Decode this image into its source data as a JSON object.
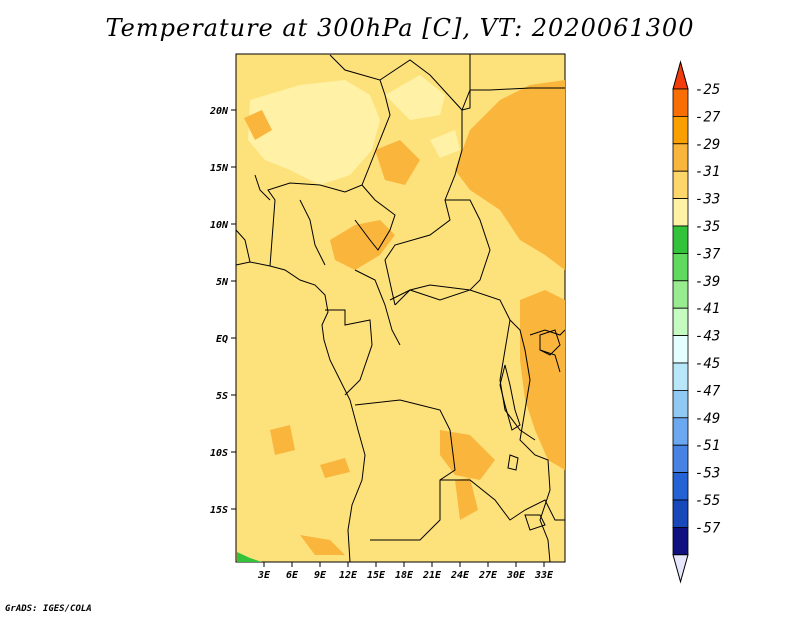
{
  "title": "Temperature at 300hPa [C], VT: 2020061300",
  "credit": "GrADS: IGES/COLA",
  "map": {
    "lon_labels": [
      "3E",
      "6E",
      "9E",
      "12E",
      "15E",
      "18E",
      "21E",
      "24E",
      "27E",
      "30E",
      "33E"
    ],
    "lat_labels": [
      "20N",
      "15N",
      "10N",
      "5N",
      "EQ",
      "5S",
      "10S",
      "15S"
    ],
    "background_color": "#fde27c",
    "border_color": "#000000"
  },
  "colorbar": {
    "labels": [
      "-25",
      "-27",
      "-29",
      "-31",
      "-33",
      "-35",
      "-37",
      "-39",
      "-41",
      "-43",
      "-45",
      "-47",
      "-49",
      "-51",
      "-53",
      "-55",
      "-57"
    ],
    "colors": [
      "#f23c0c",
      "#f96d05",
      "#f9a000",
      "#fab53d",
      "#fed66a",
      "#fff1a6",
      "#32c33a",
      "#5fd95e",
      "#98ec8f",
      "#c5fbc1",
      "#e3ffff",
      "#b8e7f9",
      "#8fc9f4",
      "#6ba8f0",
      "#4883e4",
      "#2562d4",
      "#1848ba",
      "#101080",
      "#e6e6ff"
    ]
  }
}
